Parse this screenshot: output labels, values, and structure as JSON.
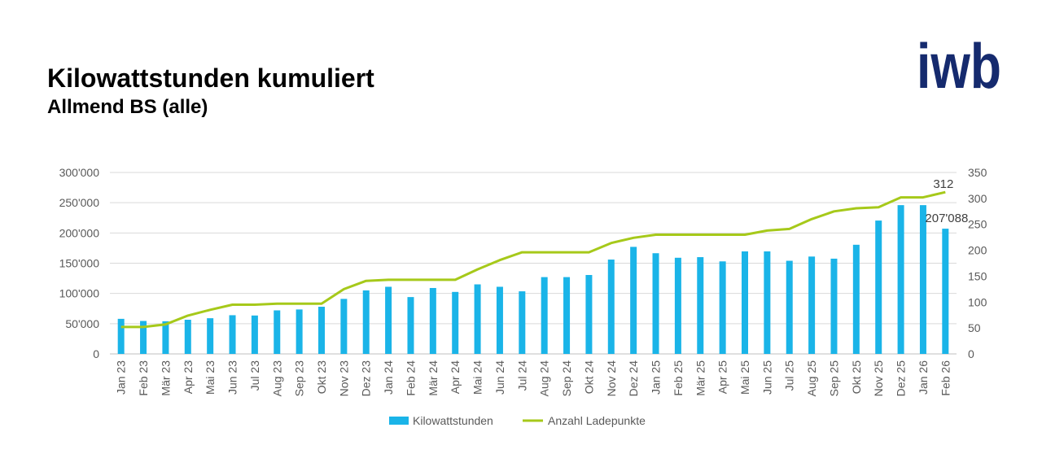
{
  "header": {
    "title": "Kilowattstunden kumuliert",
    "subtitle": "Allmend BS (alle)",
    "logo_text": "iwb"
  },
  "colors": {
    "bar": "#1ab4e8",
    "line": "#a6c91a",
    "logo": "#152a6e",
    "grid": "#d9d9d9"
  },
  "chart_data": {
    "type": "bar",
    "categories": [
      "Jan 23",
      "Feb 23",
      "Mär 23",
      "Apr 23",
      "Mai 23",
      "Jun 23",
      "Jul 23",
      "Aug 23",
      "Sep 23",
      "Okt 23",
      "Nov 23",
      "Dez 23",
      "Jan 24",
      "Feb 24",
      "Mär 24",
      "Apr 24",
      "Mai 24",
      "Jun 24",
      "Jul 24",
      "Aug 24",
      "Sep 24",
      "Okt 24",
      "Nov 24",
      "Dez 24",
      "Jan 25",
      "Feb 25",
      "Mär 25",
      "Apr 25",
      "Mai 25",
      "Jun 25",
      "Jul 25",
      "Aug 25",
      "Sep 25",
      "Okt 25",
      "Nov 25",
      "Dez 25",
      "Jan 26",
      "Feb 26"
    ],
    "series": [
      {
        "name": "Kilowattstunden",
        "type": "bar",
        "axis": "left",
        "values": [
          58000,
          54500,
          54000,
          56500,
          59000,
          64000,
          63500,
          72000,
          73500,
          78000,
          91000,
          105000,
          111000,
          94000,
          109000,
          102500,
          115000,
          111000,
          103500,
          127000,
          127000,
          130500,
          156000,
          177000,
          166500,
          159000,
          160000,
          153000,
          169500,
          169500,
          154000,
          161000,
          157500,
          180500,
          220500,
          246000,
          246000,
          207088
        ]
      },
      {
        "name": "Anzahl Ladepunkte",
        "type": "line",
        "axis": "right",
        "values": [
          52,
          52,
          57,
          74,
          85,
          95,
          95,
          97,
          97,
          97,
          125,
          141,
          143,
          143,
          143,
          143,
          163,
          181,
          196,
          196,
          196,
          196,
          214,
          224,
          230,
          230,
          230,
          230,
          230,
          238,
          241,
          260,
          275,
          281,
          283,
          302,
          302,
          312
        ]
      }
    ],
    "y_left": {
      "ylim": [
        0,
        300000
      ],
      "ticks": [
        "0",
        "50'000",
        "100'000",
        "150'000",
        "200'000",
        "250'000",
        "300'000"
      ]
    },
    "y_right": {
      "ylim": [
        0,
        350
      ],
      "ticks": [
        "0",
        "50",
        "100",
        "150",
        "200",
        "250",
        "300",
        "350"
      ]
    },
    "data_labels": {
      "last_bar": "207'088",
      "last_line": "312"
    },
    "grid": true,
    "legend_position": "bottom"
  }
}
